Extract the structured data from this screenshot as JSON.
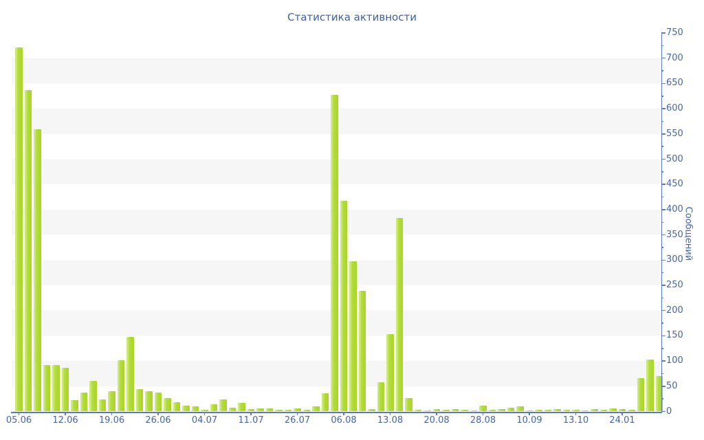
{
  "title": "Статистика активности",
  "y_axis": {
    "label": "Сообщений",
    "min": 0,
    "max": 750,
    "major_step": 50,
    "minor_step": 25
  },
  "x_axis": {
    "tick_labels": [
      "05.06",
      "12.06",
      "19.06",
      "26.06",
      "04.07",
      "11.07",
      "26.07",
      "06.08",
      "13.08",
      "20.08",
      "28.08",
      "10.09",
      "13.10",
      "24.01"
    ],
    "label_every": 5
  },
  "colors": {
    "bar": "#b2dc3a",
    "bar_highlight": "#cdea76",
    "bar_shade": "#a9d42a",
    "axis": "#5b79bb",
    "text": "#4565a8",
    "title_text": "#3e5fa6",
    "stripe": "#f6f6f6",
    "background": "#ffffff"
  },
  "chart_data": {
    "type": "bar",
    "title": "Статистика активности",
    "xlabel": "",
    "ylabel": "Сообщений",
    "ylim": [
      0,
      750
    ],
    "y_major_step": 50,
    "y_minor_step": 25,
    "grid": "horizontal alternating stripes, 50-unit bands",
    "legend": null,
    "tick_labels": [
      "05.06",
      "12.06",
      "19.06",
      "26.06",
      "04.07",
      "11.07",
      "26.07",
      "06.08",
      "13.08",
      "20.08",
      "28.08",
      "10.09",
      "13.10",
      "24.01"
    ],
    "tick_label_positions": [
      0,
      5,
      10,
      15,
      20,
      25,
      30,
      35,
      40,
      45,
      50,
      55,
      60,
      65
    ],
    "values": [
      722,
      637,
      559,
      92,
      92,
      86,
      23,
      38,
      60,
      24,
      40,
      102,
      148,
      44,
      40,
      38,
      27,
      18,
      11,
      10,
      4,
      14,
      24,
      8,
      17,
      5,
      6,
      6,
      3,
      4,
      6,
      3,
      10,
      36,
      627,
      417,
      298,
      239,
      5,
      58,
      153,
      384,
      26,
      4,
      2,
      5,
      3,
      5,
      4,
      2,
      11,
      3,
      5,
      8,
      10,
      2,
      4,
      4,
      5,
      3,
      4,
      2,
      5,
      3,
      6,
      5,
      3,
      66,
      103,
      70
    ]
  }
}
